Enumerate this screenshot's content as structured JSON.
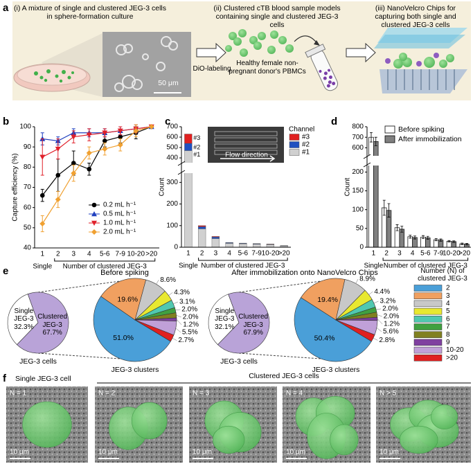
{
  "panel_labels": [
    "a",
    "b",
    "c",
    "d",
    "e",
    "f"
  ],
  "panel_a": {
    "steps": [
      "(i) A mixture of single and clustered JEG-3 cells in sphere-formation culture",
      "(ii) Clustered cTB blood sample models containing single and clustered JEG-3 cells",
      "(iii) NanoVelcro Chips for capturing both single and clustered JEG-3 cells"
    ],
    "scale_bar": "50 μm",
    "arrow_label": "DiO-labeling",
    "pbmc_label": "Healthy female non-pregnant donor's PBMCs"
  },
  "chart_data": [
    {
      "type": "line",
      "ylabel": "Capture efficiency (%)",
      "categories": [
        "1",
        "2",
        "3",
        "4",
        "5-6",
        "7-9",
        "10-20",
        ">20"
      ],
      "group_labels": [
        "Single",
        "Number of clustered JEG-3"
      ],
      "ylim": [
        40,
        100
      ],
      "yticks": [
        40,
        50,
        60,
        70,
        80,
        90,
        100
      ],
      "series": [
        {
          "name": "0.2 mL h⁻¹",
          "color": "#000000",
          "marker": "o",
          "values": [
            66,
            76,
            82,
            79,
            93,
            95,
            97,
            100
          ],
          "errors": [
            3,
            8,
            6,
            3,
            3,
            3,
            3,
            0
          ]
        },
        {
          "name": "0.5 mL h⁻¹",
          "color": "#1f3fbf",
          "marker": "^",
          "values": [
            94,
            93,
            97,
            97,
            97,
            98,
            99,
            100
          ],
          "errors": [
            3,
            2,
            2,
            2,
            2,
            2,
            2,
            0
          ]
        },
        {
          "name": "1.0 mL h⁻¹",
          "color": "#e0202a",
          "marker": "v",
          "values": [
            85,
            89,
            95,
            96,
            97,
            98,
            99,
            100
          ],
          "errors": [
            9,
            5,
            3,
            3,
            2,
            2,
            2,
            0
          ]
        },
        {
          "name": "2.0 mL h⁻¹",
          "color": "#f0a030",
          "marker": "D",
          "values": [
            52,
            64,
            77,
            87,
            89,
            91,
            98,
            100
          ],
          "errors": [
            4,
            4,
            4,
            3,
            3,
            3,
            3,
            0
          ]
        }
      ]
    },
    {
      "type": "stacked_bar",
      "ylabel": "Count",
      "categories": [
        "1",
        "2",
        "3",
        "4",
        "5-6",
        "7-9",
        "10-20",
        ">20"
      ],
      "group_labels": [
        "Single",
        "Number of clustered JEG-3"
      ],
      "ylim": [
        0,
        700
      ],
      "ybreak": [
        330,
        380
      ],
      "yticks": [
        0,
        100,
        200,
        300,
        400,
        500,
        600,
        700
      ],
      "legend_title": "Channel",
      "inset_label": "Flow direction",
      "series": [
        {
          "name": "#1",
          "color": "#d0d0d0",
          "values": [
            470,
            85,
            40,
            18,
            16,
            14,
            12,
            6
          ]
        },
        {
          "name": "#2",
          "color": "#2050c0",
          "values": [
            70,
            10,
            7,
            3,
            2,
            2,
            2,
            1
          ]
        },
        {
          "name": "#3",
          "color": "#e02020",
          "values": [
            90,
            5,
            3,
            1,
            1,
            1,
            1,
            1
          ]
        }
      ]
    },
    {
      "type": "grouped_bar",
      "ylabel": "Count",
      "categories": [
        "1",
        "2",
        "3",
        "4",
        "5-6",
        "7-9",
        "10-20",
        ">20"
      ],
      "group_labels": [
        "Single",
        "Number of clustered JEG-3"
      ],
      "ylim": [
        0,
        800
      ],
      "ybreak": [
        210,
        550
      ],
      "yticks": [
        0,
        50,
        100,
        150,
        200,
        600,
        700,
        800
      ],
      "series": [
        {
          "name": "Before spiking",
          "color": "#ffffff",
          "values": [
            700,
            105,
            52,
            28,
            27,
            20,
            16,
            9
          ],
          "errors": [
            45,
            20,
            8,
            4,
            4,
            3,
            2,
            2
          ]
        },
        {
          "name": "After immobilization",
          "color": "#808080",
          "values": [
            660,
            98,
            48,
            26,
            25,
            19,
            15,
            8
          ],
          "errors": [
            40,
            18,
            8,
            4,
            4,
            3,
            2,
            2
          ]
        }
      ]
    },
    {
      "type": "pie",
      "title": "Before spiking",
      "caption": "JEG-3 cells",
      "categories": [
        "Single JEG-3",
        "Clustered JEG-3"
      ],
      "values": [
        32.3,
        67.7
      ],
      "value_labels": [
        "32.3%",
        "67.7%"
      ],
      "colors": [
        "#ffffff",
        "#b9a3d8"
      ],
      "startangle": 224
    },
    {
      "type": "pie",
      "caption": "JEG-3 clusters",
      "legend_title": "Number (N) of clustered JEG-3",
      "categories": [
        "2",
        "3",
        "4",
        "5",
        "6",
        "7",
        "8",
        "9",
        "10-20",
        ">20"
      ],
      "values": [
        51.0,
        19.6,
        8.6,
        4.3,
        3.1,
        2.0,
        2.0,
        1.2,
        5.5,
        2.7
      ],
      "value_labels": [
        "51.0%",
        "19.6%",
        "8.6%",
        "4.3%",
        "3.1%",
        "2.0%",
        "2.0%",
        "1.2%",
        "5.5%",
        "2.7%"
      ],
      "colors": [
        "#4a9fd8",
        "#f0a060",
        "#c8c8c8",
        "#e8e830",
        "#50c8b0",
        "#40a040",
        "#808020",
        "#8040a0",
        "#c0a0d8",
        "#e02020"
      ],
      "startangle": 121
    },
    {
      "type": "pie",
      "title": "After immobilization onto NanoVelcro Chips",
      "caption": "JEG-3 cells",
      "categories": [
        "Single JEG-3",
        "Clustered JEG-3"
      ],
      "values": [
        32.1,
        67.9
      ],
      "value_labels": [
        "32.1%",
        "67.9%"
      ],
      "colors": [
        "#ffffff",
        "#b9a3d8"
      ],
      "startangle": 224
    },
    {
      "type": "pie",
      "caption": "JEG-3 clusters",
      "values": [
        50.4,
        19.4,
        8.9,
        4.4,
        3.2,
        2.0,
        2.0,
        1.2,
        5.6,
        2.8
      ],
      "value_labels": [
        "50.4%",
        "19.4%",
        "8.9%",
        "4.4%",
        "3.2%",
        "2.0%",
        "2.0%",
        "1.2%",
        "5.6%",
        "2.8%"
      ],
      "startangle": 121
    }
  ],
  "panel_f": {
    "single_header": "Single JEG-3 cell",
    "cluster_header": "Clustered JEG-3 cells",
    "images": [
      {
        "label": "N = 1",
        "scale": "10 μm"
      },
      {
        "label": "N = 2",
        "scale": "10 μm"
      },
      {
        "label": "N = 3",
        "scale": "10 μm"
      },
      {
        "label": "N = 4",
        "scale": "10 μm"
      },
      {
        "label": "N > 5",
        "scale": "10 μm"
      }
    ]
  }
}
